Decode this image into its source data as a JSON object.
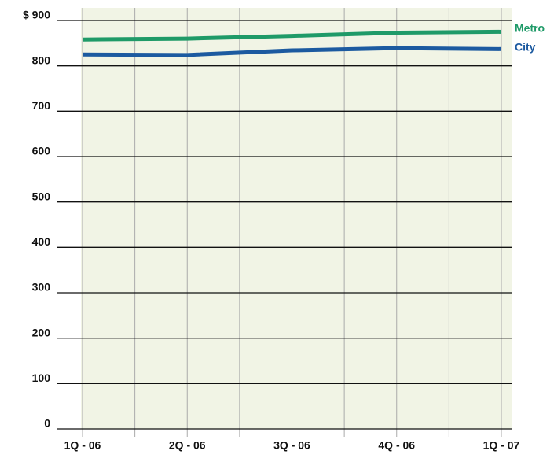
{
  "chart_data": {
    "type": "line",
    "categories": [
      "1Q - 06",
      "2Q - 06",
      "3Q - 06",
      "4Q - 06",
      "1Q - 07"
    ],
    "series": [
      {
        "name": "Metro",
        "color": "#1f9a68",
        "values": [
          858,
          860,
          866,
          873,
          875
        ]
      },
      {
        "name": "City",
        "color": "#1c5aa0",
        "values": [
          825,
          824,
          834,
          839,
          837
        ]
      }
    ],
    "ylim": [
      0,
      900
    ],
    "yticks": [
      0,
      100,
      200,
      300,
      400,
      500,
      600,
      700,
      800,
      {
        "value": 900,
        "label": "$ 900"
      }
    ],
    "grid": true
  }
}
